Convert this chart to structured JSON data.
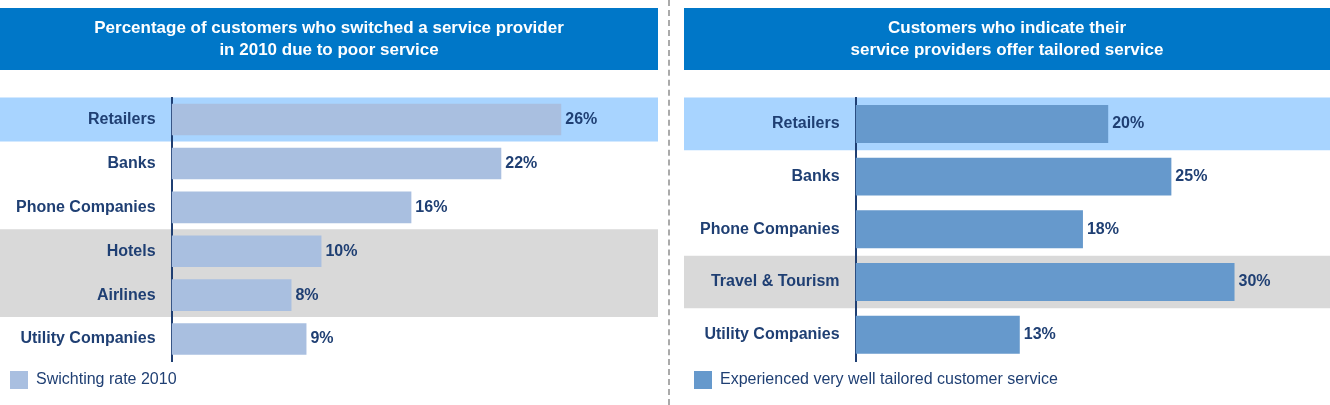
{
  "chart_data": [
    {
      "type": "bar",
      "orientation": "horizontal",
      "title": "Percentage of customers who switched a service provider\nin 2010 due to poor service",
      "categories": [
        "Retailers",
        "Banks",
        "Phone Companies",
        "Hotels",
        "Airlines",
        "Utility Companies"
      ],
      "series": [
        {
          "name": "Swichting rate 2010",
          "color": "#a9bfe0",
          "values": [
            26,
            22,
            16,
            10,
            8,
            9
          ],
          "value_labels": [
            "26%",
            "22%",
            "16%",
            "10%",
            "8%",
            "9%"
          ]
        }
      ],
      "bands": [
        {
          "axis": "y",
          "from": "Retailers",
          "to": "Retailers",
          "color": "#a8d4ff"
        },
        {
          "axis": "y",
          "from": "Hotels",
          "to": "Airlines",
          "color": "#d9d9d9"
        }
      ],
      "legend": "bottom left"
    },
    {
      "type": "bar",
      "orientation": "horizontal",
      "title": "Customers who indicate their\nservice providers offer tailored service",
      "categories": [
        "Retailers",
        "Banks",
        "Phone Companies",
        "Travel & Tourism",
        "Utility Companies"
      ],
      "series": [
        {
          "name": "Experienced very well tailored customer service",
          "color": "#6699cc",
          "values": [
            20,
            25,
            18,
            30,
            13
          ],
          "value_labels": [
            "20%",
            "25%",
            "18%",
            "30%",
            "13%"
          ]
        }
      ],
      "bands": [
        {
          "axis": "y",
          "from": "Retailers",
          "to": "Retailers",
          "color": "#a8d4ff"
        },
        {
          "axis": "y",
          "from": "Travel & Tourism",
          "to": "Travel & Tourism",
          "color": "#d9d9d9"
        }
      ],
      "legend": "bottom left"
    }
  ]
}
